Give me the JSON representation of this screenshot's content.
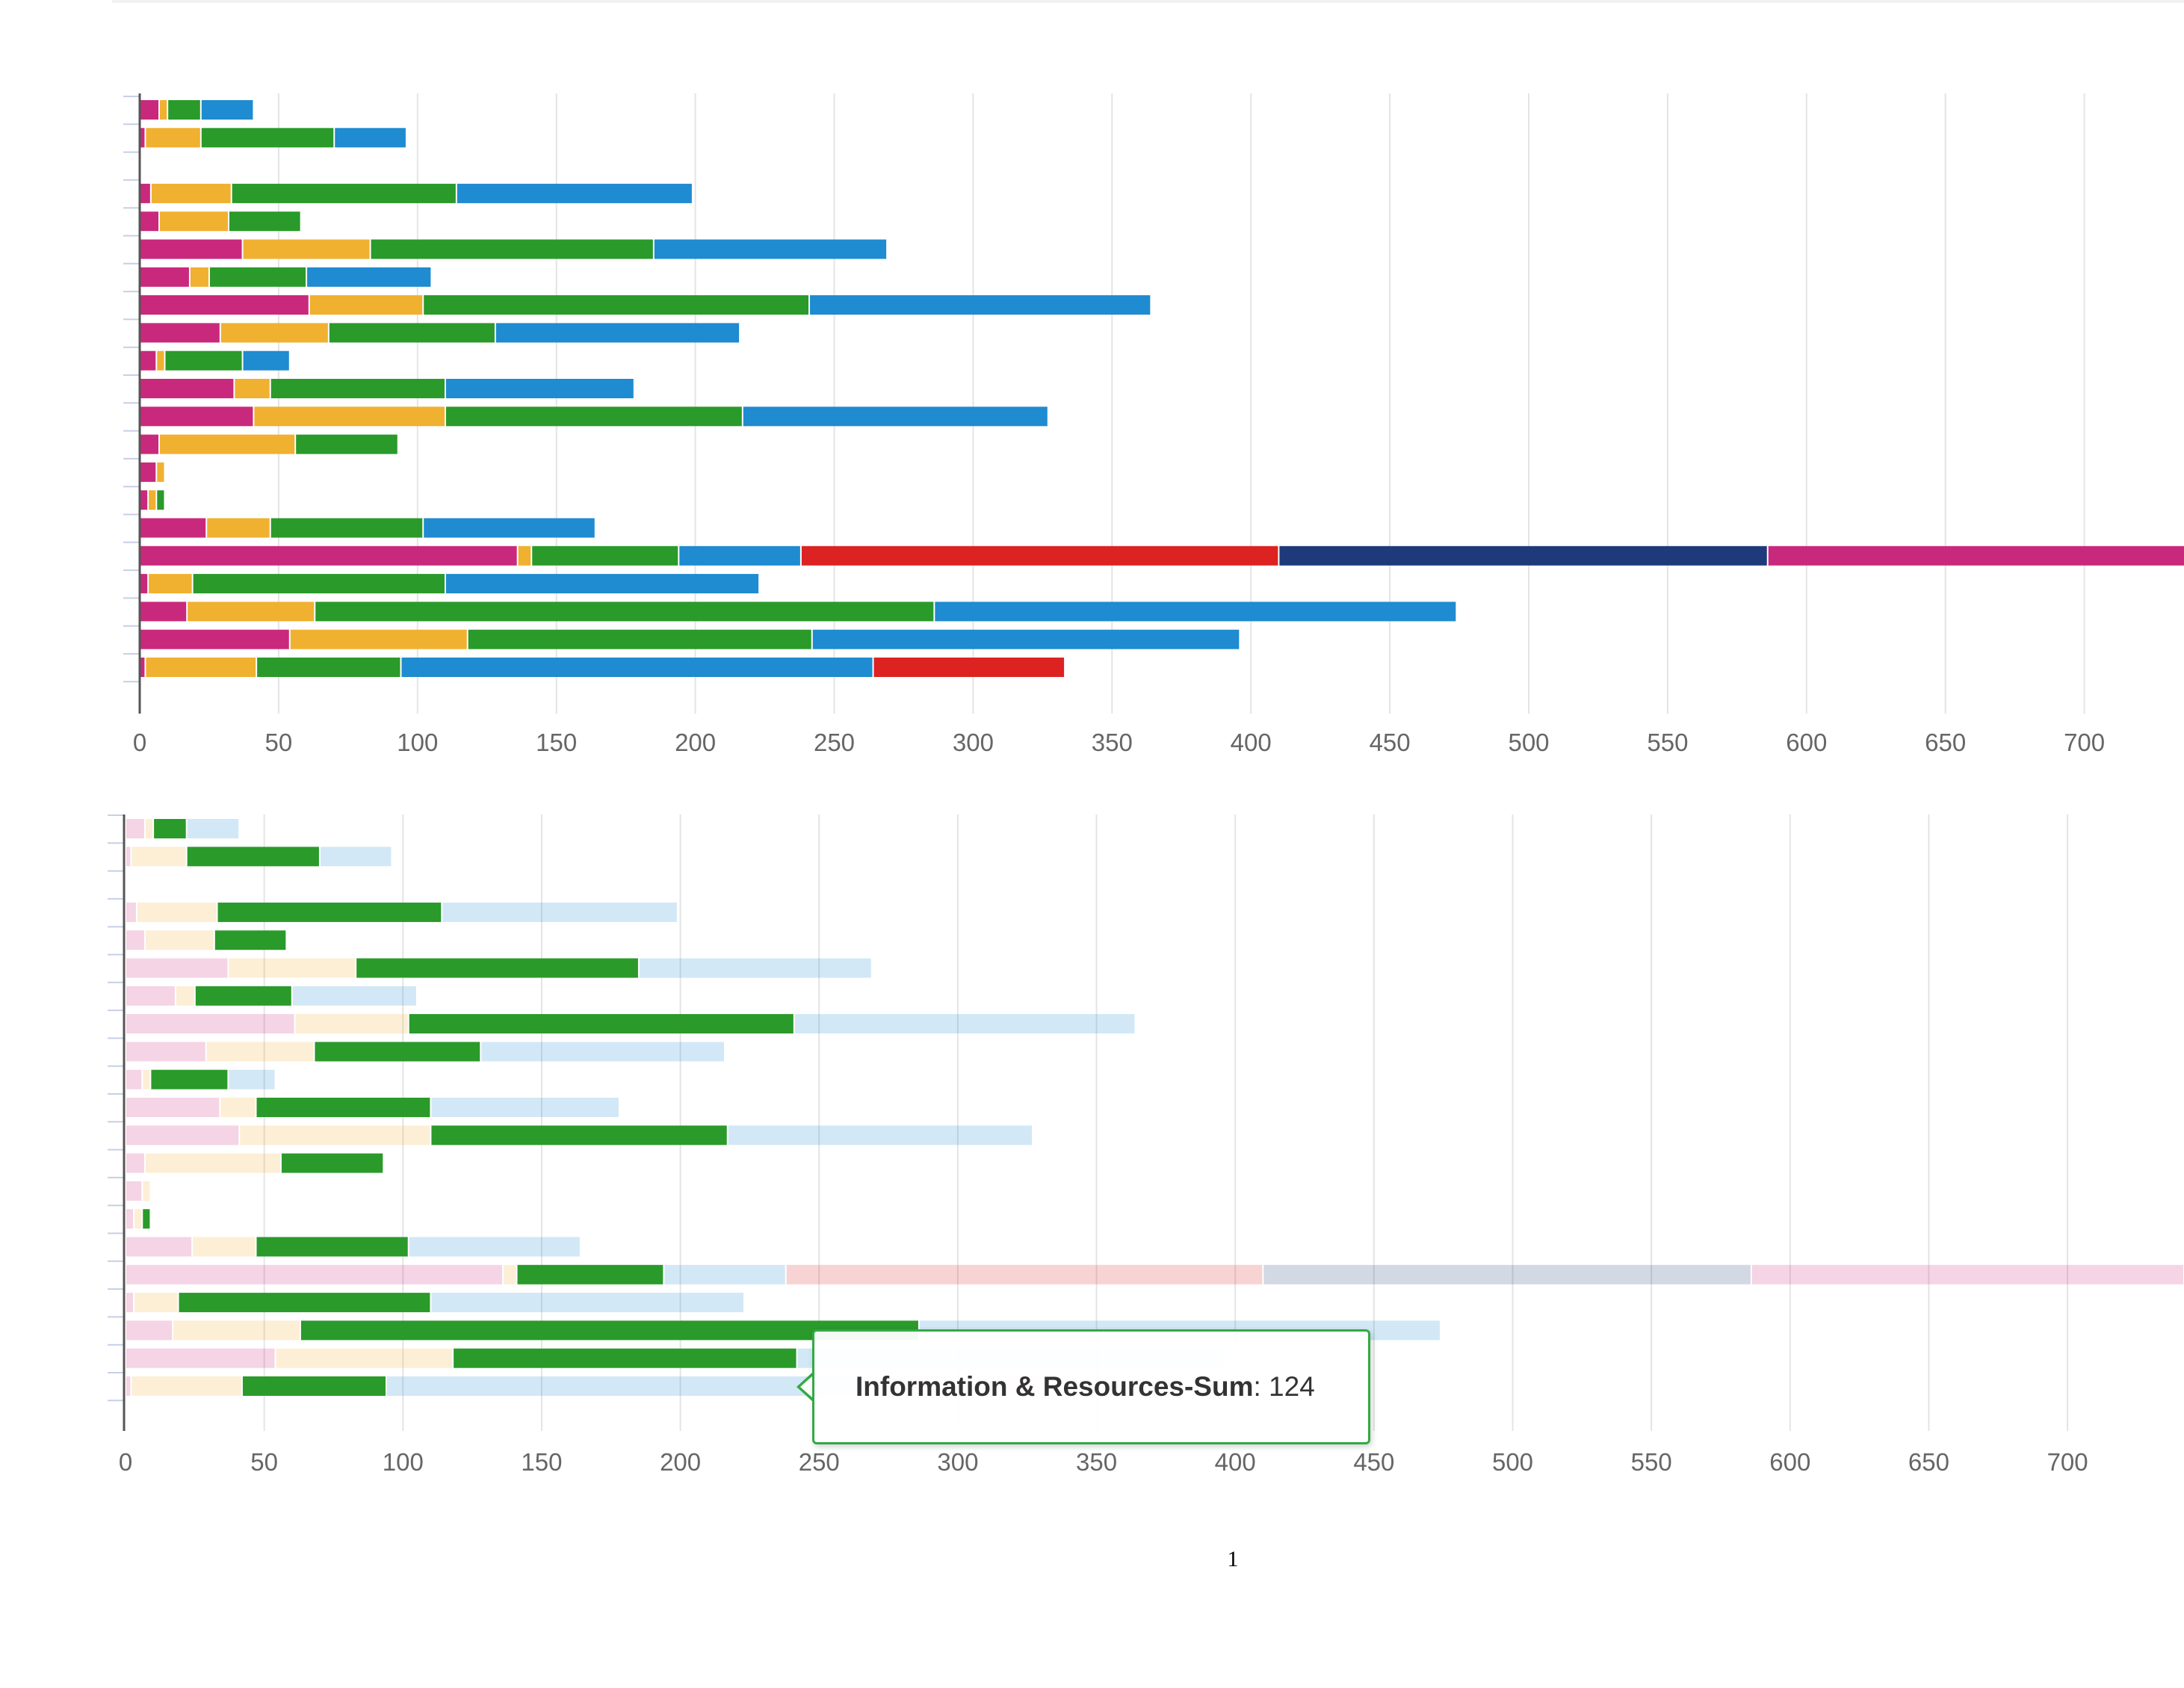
{
  "chart_data": [
    {
      "type": "bar",
      "orientation": "horizontal",
      "stacked": true,
      "title": "",
      "xlabel": "",
      "ylabel": "",
      "xlim": [
        0,
        735
      ],
      "x_ticks": [
        0,
        50,
        100,
        150,
        200,
        250,
        300,
        350,
        400,
        450,
        500,
        550,
        600,
        650,
        700
      ],
      "grid": "vertical",
      "legend": "none",
      "colors": [
        "#c9297c",
        "#f0b030",
        "#2a9a2a",
        "#1f8bd0",
        "#dd2222",
        "#1f3a7a"
      ],
      "rows": [
        [
          7,
          3,
          12,
          19
        ],
        [
          2,
          20,
          48,
          26
        ],
        [],
        [
          4,
          29,
          81,
          85
        ],
        [
          7,
          25,
          26
        ],
        [
          37,
          46,
          102,
          84
        ],
        [
          18,
          7,
          35,
          45
        ],
        [
          61,
          41,
          139,
          123
        ],
        [
          29,
          39,
          60,
          88
        ],
        [
          6,
          3,
          28,
          17
        ],
        [
          34,
          13,
          63,
          68
        ],
        [
          41,
          69,
          107,
          110
        ],
        [
          7,
          49,
          37
        ],
        [
          6,
          3
        ],
        [
          3,
          3,
          3
        ],
        [
          24,
          23,
          55,
          62
        ],
        [
          136,
          5,
          53,
          44,
          172,
          176,
          156
        ],
        [
          3,
          16,
          91,
          113
        ],
        [
          17,
          46,
          223,
          188
        ],
        [
          54,
          64,
          124,
          154
        ],
        [
          2,
          40,
          52,
          170,
          69
        ]
      ]
    },
    {
      "type": "bar",
      "orientation": "horizontal",
      "stacked": true,
      "title": "",
      "xlabel": "",
      "ylabel": "",
      "xlim": [
        0,
        740
      ],
      "x_ticks": [
        0,
        50,
        100,
        150,
        200,
        250,
        300,
        350,
        400,
        450,
        500,
        550,
        600,
        650,
        700
      ],
      "grid": "vertical",
      "legend": "none",
      "highlighted_series_index": 2,
      "colors": [
        "#c9297c",
        "#f0b030",
        "#2a9a2a",
        "#1f8bd0",
        "#dd2222",
        "#1f3a7a"
      ],
      "rows": [
        [
          7,
          3,
          12,
          19
        ],
        [
          2,
          20,
          48,
          26
        ],
        [],
        [
          4,
          29,
          81,
          85
        ],
        [
          7,
          25,
          26
        ],
        [
          37,
          46,
          102,
          84
        ],
        [
          18,
          7,
          35,
          45
        ],
        [
          61,
          41,
          139,
          123
        ],
        [
          29,
          39,
          60,
          88
        ],
        [
          6,
          3,
          28,
          17
        ],
        [
          34,
          13,
          63,
          68
        ],
        [
          41,
          69,
          107,
          110
        ],
        [
          7,
          49,
          37
        ],
        [
          6,
          3
        ],
        [
          3,
          3,
          3
        ],
        [
          24,
          23,
          55,
          62
        ],
        [
          136,
          5,
          53,
          44,
          172,
          176,
          156
        ],
        [
          3,
          16,
          91,
          113
        ],
        [
          17,
          46,
          223,
          188
        ],
        [
          54,
          64,
          124,
          154
        ],
        [
          2,
          40,
          52,
          170,
          69
        ]
      ]
    }
  ],
  "tooltip": {
    "name": "Information & Resources-Sum",
    "value": ": 124"
  },
  "page_number": "1"
}
